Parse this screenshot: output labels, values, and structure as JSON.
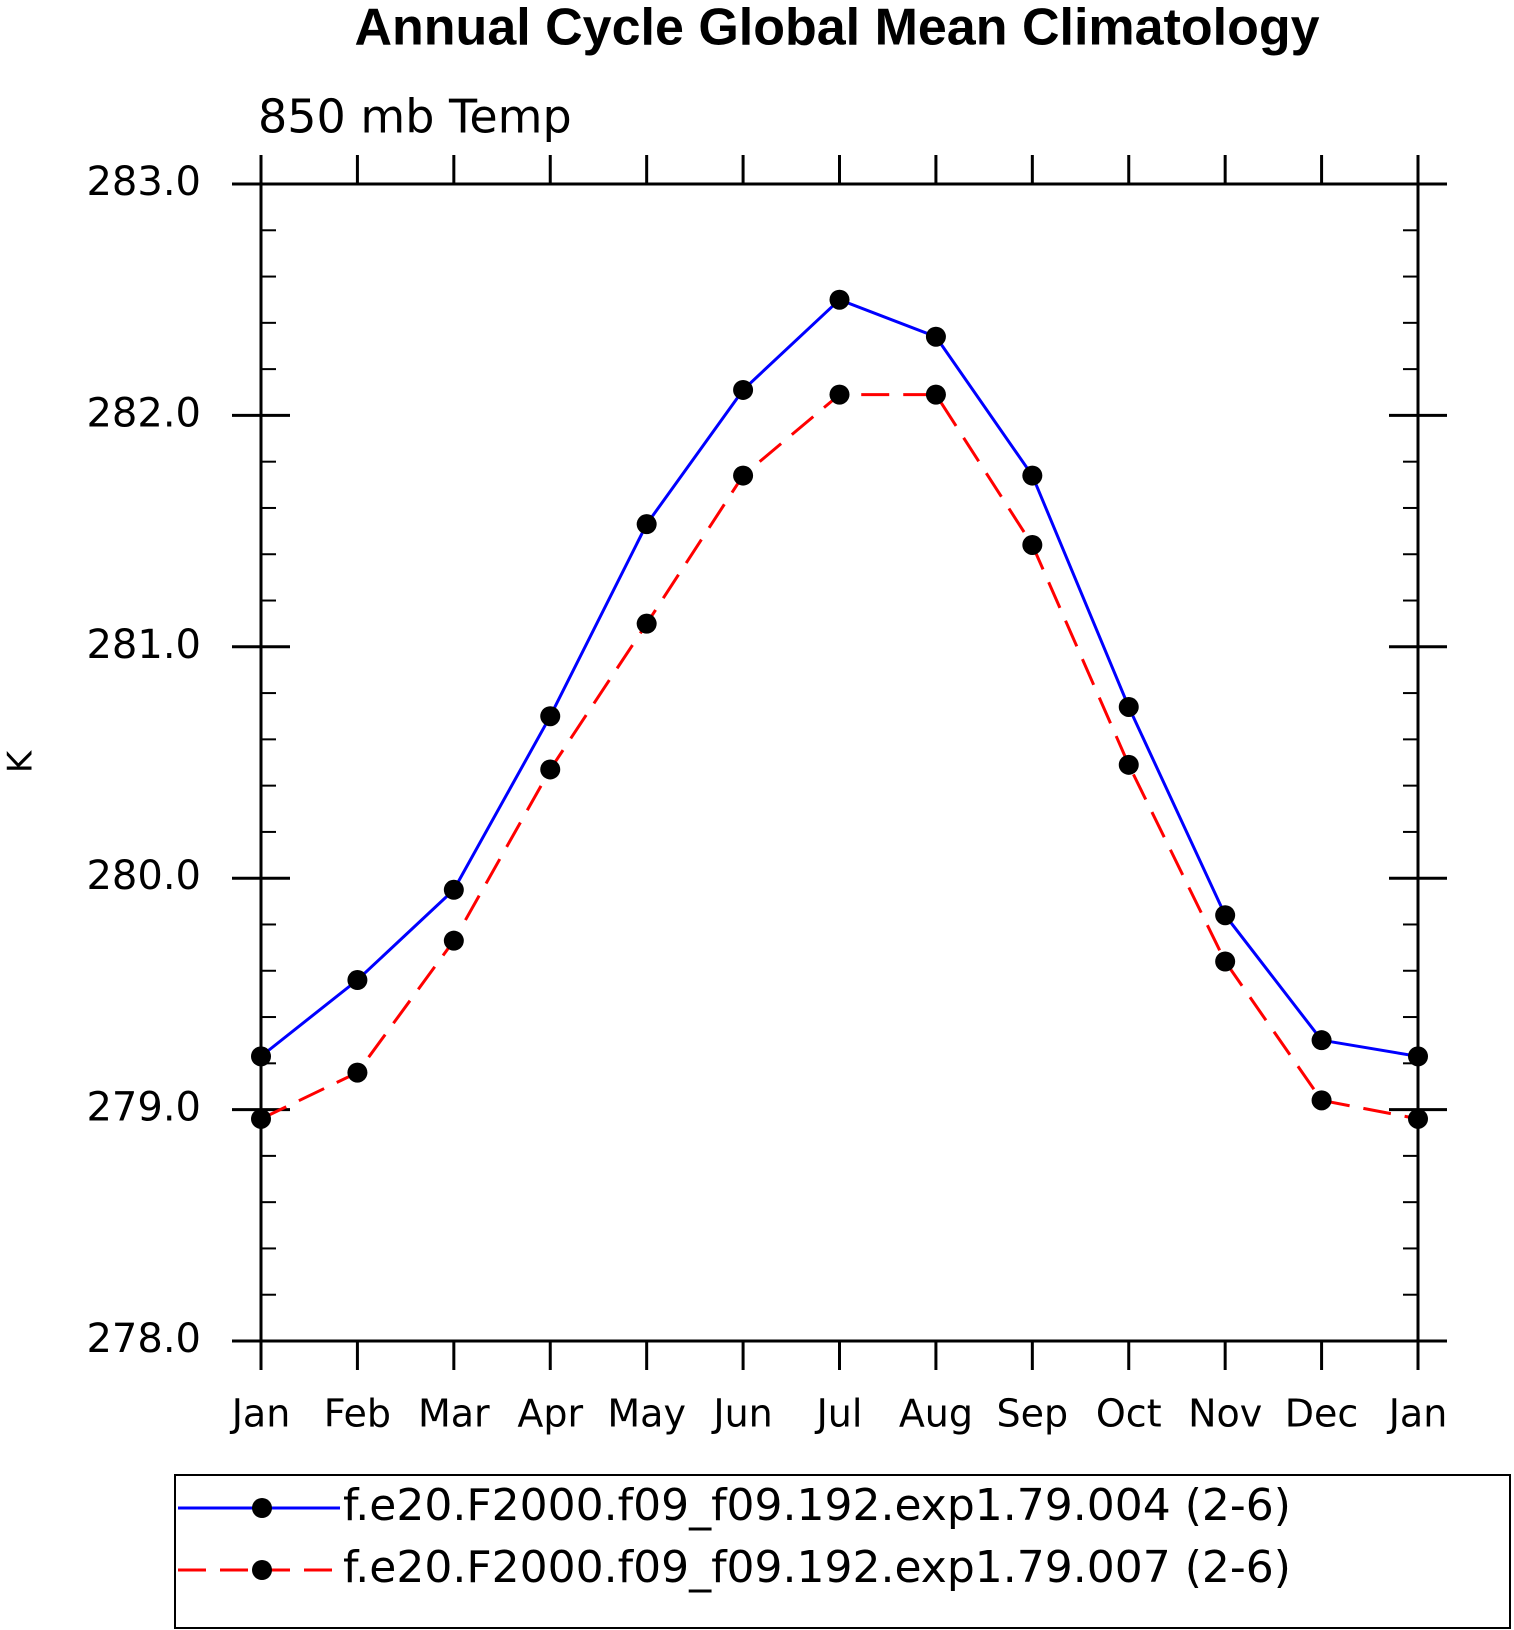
{
  "chart_data": {
    "type": "line",
    "title": "Annual Cycle Global Mean Climatology",
    "subtitle": "850 mb Temp",
    "ylabel": "K",
    "categories": [
      "Jan",
      "Feb",
      "Mar",
      "Apr",
      "May",
      "Jun",
      "Jul",
      "Aug",
      "Sep",
      "Oct",
      "Nov",
      "Dec",
      "Jan"
    ],
    "series": [
      {
        "name": "f.e20.F2000.f09_f09.192.exp1.79.004 (2-6)",
        "color": "#0000ff",
        "dash": false,
        "values": [
          279.23,
          279.56,
          279.95,
          280.7,
          281.53,
          282.11,
          282.5,
          282.34,
          281.74,
          280.74,
          279.84,
          279.3,
          279.23
        ]
      },
      {
        "name": "f.e20.F2000.f09_f09.192.exp1.79.007 (2-6)",
        "color": "#ff0000",
        "dash": true,
        "values": [
          278.96,
          279.16,
          279.73,
          280.47,
          281.1,
          281.74,
          282.09,
          282.09,
          281.44,
          280.49,
          279.64,
          279.04,
          278.96
        ]
      }
    ],
    "ylim": [
      278,
      283
    ],
    "yticks": [
      {
        "value": 278,
        "label": "278.0"
      },
      {
        "value": 279,
        "label": "279.0"
      },
      {
        "value": 280,
        "label": "280.0"
      },
      {
        "value": 281,
        "label": "281.0"
      },
      {
        "value": 282,
        "label": "282.0"
      },
      {
        "value": 283,
        "label": "283.0"
      }
    ],
    "yminorticks": [
      278.2,
      278.4,
      278.6,
      278.8,
      279.2,
      279.4,
      279.6,
      279.8,
      280.2,
      280.4,
      280.6,
      280.8,
      281.2,
      281.4,
      281.6,
      281.8,
      282.2,
      282.4,
      282.6,
      282.8
    ],
    "grid": false
  }
}
